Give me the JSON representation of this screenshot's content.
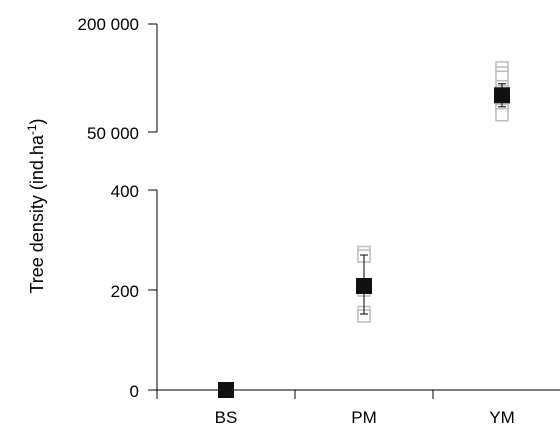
{
  "chart_data": {
    "type": "scatter",
    "categories": [
      "BS",
      "PM",
      "YM"
    ],
    "ylabel_main": "Tree density (ind.ha",
    "ylabel_sup": "-1",
    "ylabel_close": ")",
    "upper_panel": {
      "tick_labels": [
        "200 000",
        "50 000"
      ],
      "ylim": [
        50000,
        200000
      ]
    },
    "lower_panel": {
      "tick_labels": [
        "400",
        "200",
        "0"
      ],
      "ylim": [
        0,
        400
      ]
    },
    "means": [
      {
        "category": "BS",
        "value": 0,
        "panel": "lower"
      },
      {
        "category": "PM",
        "value": 208,
        "panel": "lower",
        "err_low": 152,
        "err_high": 270
      },
      {
        "category": "YM",
        "value": 101000,
        "panel": "upper",
        "err_low": 85000,
        "err_high": 117000
      }
    ],
    "individual_points": [
      {
        "category": "PM",
        "values": [
          275,
          268,
          210,
          200,
          155,
          148
        ]
      },
      {
        "category": "YM",
        "values": [
          139000,
          132000,
          126000,
          113000,
          106000,
          94000,
          86000,
          80000,
          74000
        ]
      }
    ],
    "colors": {
      "mean_marker": "#111111",
      "point_marker": "#bdbdbd",
      "axis": "#000000"
    }
  }
}
